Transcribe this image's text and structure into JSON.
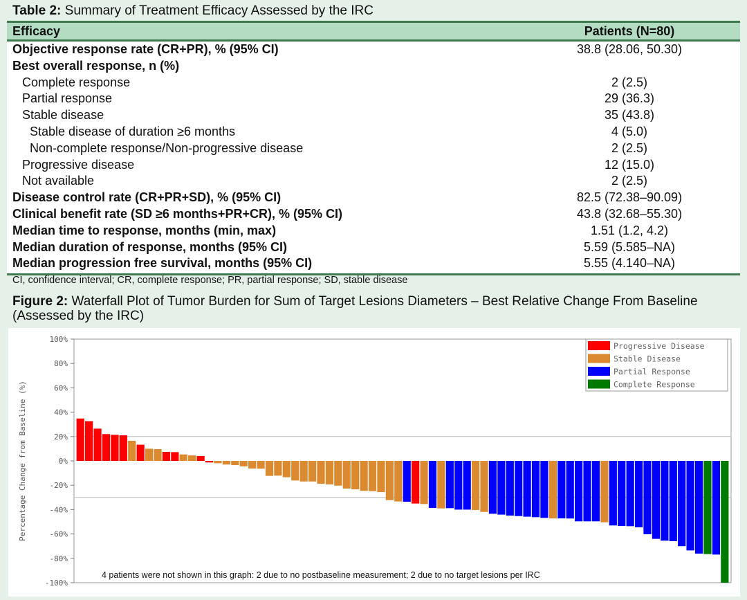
{
  "table": {
    "label": "Table 2:",
    "title": "Summary of Treatment Efficacy Assessed by the IRC",
    "columns": [
      "Efficacy",
      "Patients (N=80)"
    ],
    "rows": [
      {
        "label": "Objective response rate (CR+PR), % (95% CI)",
        "value": "38.8 (28.06, 50.30)",
        "bold": true,
        "indent": 0
      },
      {
        "label": "Best overall response, n (%)",
        "value": "",
        "bold": true,
        "indent": 0
      },
      {
        "label": "Complete response",
        "value": "2 (2.5)",
        "bold": false,
        "indent": 1
      },
      {
        "label": "Partial response",
        "value": "29 (36.3)",
        "bold": false,
        "indent": 1
      },
      {
        "label": "Stable disease",
        "value": "35 (43.8)",
        "bold": false,
        "indent": 1
      },
      {
        "label": "Stable disease of duration ≥6 months",
        "value": "4 (5.0)",
        "bold": false,
        "indent": 2
      },
      {
        "label": "Non-complete response/Non-progressive disease",
        "value": "2 (2.5)",
        "bold": false,
        "indent": 2
      },
      {
        "label": "Progressive disease",
        "value": "12 (15.0)",
        "bold": false,
        "indent": 1
      },
      {
        "label": "Not available",
        "value": "2 (2.5)",
        "bold": false,
        "indent": 1
      },
      {
        "label": "Disease control rate (CR+PR+SD), % (95% CI)",
        "value": "82.5 (72.38–90.09)",
        "bold": true,
        "indent": 0
      },
      {
        "label": "Clinical benefit rate (SD ≥6 months+PR+CR), % (95% CI)",
        "value": "43.8 (32.68–55.30)",
        "bold": true,
        "indent": 0
      },
      {
        "label": "Median time to response, months (min, max)",
        "value": "1.51 (1.2, 4.2)",
        "bold": true,
        "indent": 0
      },
      {
        "label": "Median duration of response, months (95% CI)",
        "value": "5.59 (5.585–NA)",
        "bold": true,
        "indent": 0
      },
      {
        "label": "Median progression free survival, months (95% CI)",
        "value": "5.55 (4.140–NA)",
        "bold": true,
        "indent": 0
      }
    ],
    "footnote": "CI, confidence interval; CR, complete response; PR, partial response; SD, stable disease"
  },
  "figure": {
    "label": "Figure 2:",
    "title": "Waterfall Plot of Tumor Burden for Sum of Target Lesions Diameters – Best Relative Change From Baseline (Assessed by the IRC)"
  },
  "chart_data": {
    "type": "bar",
    "ylabel": "Percentage Change from Baseline (%)",
    "ylim": [
      -100,
      100
    ],
    "yticks": [
      "100%",
      "80%",
      "60%",
      "40%",
      "20%",
      "0%",
      "-20%",
      "-40%",
      "-60%",
      "-80%",
      "-100%"
    ],
    "reference_lines": [
      20,
      -30
    ],
    "legend_position": "top-right",
    "annotation": "4 patients were not shown in this graph: 2 due to no postbaseline measurement; 2 due to no target lesions per IRC",
    "legend": [
      {
        "key": "PD",
        "name": "Progressive Disease",
        "color": "#ff0000"
      },
      {
        "key": "SD",
        "name": "Stable Disease",
        "color": "#db8a30"
      },
      {
        "key": "PR",
        "name": "Partial Response",
        "color": "#0000ff"
      },
      {
        "key": "CR",
        "name": "Complete Response",
        "color": "#007a00"
      }
    ],
    "values": [
      34.8,
      32.6,
      26.5,
      22,
      21.4,
      21,
      16.5,
      13.3,
      10,
      9.7,
      7.4,
      7.2,
      5.3,
      4.5,
      4,
      -1.3,
      -1.9,
      -3,
      -3.4,
      -4.5,
      -6.3,
      -6.4,
      -12.3,
      -12.1,
      -13.4,
      -16.1,
      -16.9,
      -16.9,
      -18.8,
      -19.3,
      -20.3,
      -22.7,
      -23.3,
      -24.6,
      -24.8,
      -25.6,
      -32.2,
      -33.3,
      -33.5,
      -35,
      -35.4,
      -38.6,
      -39,
      -38.8,
      -40,
      -40,
      -40.3,
      -41.9,
      -43.4,
      -44.1,
      -44.9,
      -45.3,
      -45.8,
      -46.2,
      -46.8,
      -47.2,
      -47.2,
      -47.3,
      -49.6,
      -49.6,
      -49.6,
      -50.4,
      -53,
      -53.4,
      -53.6,
      -54.5,
      -60.2,
      -64,
      -65.5,
      -65.9,
      -70,
      -73.5,
      -76.1,
      -76.5,
      -76.9,
      -100
    ],
    "categories": [
      "PD",
      "PD",
      "PD",
      "PD",
      "PD",
      "PD",
      "SD",
      "PD",
      "SD",
      "SD",
      "PD",
      "PD",
      "SD",
      "SD",
      "PD",
      "PD",
      "SD",
      "SD",
      "SD",
      "SD",
      "SD",
      "SD",
      "SD",
      "SD",
      "SD",
      "SD",
      "SD",
      "SD",
      "SD",
      "SD",
      "SD",
      "SD",
      "SD",
      "SD",
      "SD",
      "SD",
      "SD",
      "SD",
      "PR",
      "PD",
      "SD",
      "PR",
      "SD",
      "PR",
      "PR",
      "PR",
      "SD",
      "SD",
      "PR",
      "PR",
      "PR",
      "PR",
      "PR",
      "PR",
      "PR",
      "SD",
      "PR",
      "PR",
      "PR",
      "PR",
      "PR",
      "SD",
      "PR",
      "PR",
      "PR",
      "PR",
      "PR",
      "PR",
      "PR",
      "PR",
      "PR",
      "PR",
      "PR",
      "CR",
      "PR",
      "CR"
    ]
  }
}
